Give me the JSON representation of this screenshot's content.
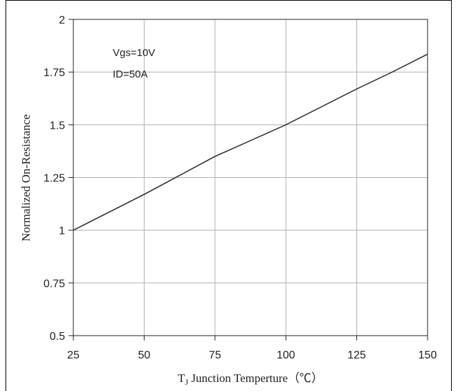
{
  "chart_data": {
    "type": "line",
    "title": "",
    "xlabel": {
      "prefix": "T",
      "subscript": "J",
      "rest": " Junction Temperture（℃）"
    },
    "ylabel": "Normalized On-Resistance",
    "xlim": [
      25,
      150
    ],
    "ylim": [
      0.5,
      2
    ],
    "xticks": [
      "25",
      "50",
      "75",
      "100",
      "125",
      "150"
    ],
    "yticks": [
      "0.5",
      "0.75",
      "1",
      "1.25",
      "1.5",
      "1.75",
      "2"
    ],
    "grid": true,
    "annotations": [
      "Vgs=10V",
      "ID=50A"
    ],
    "series": [
      {
        "x": [
          25,
          37.5,
          50,
          62.5,
          75,
          87.5,
          100,
          112.5,
          125,
          137.5,
          150
        ],
        "y": [
          1.0,
          1.085,
          1.17,
          1.26,
          1.35,
          1.425,
          1.5,
          1.585,
          1.67,
          1.75,
          1.835
        ]
      }
    ],
    "line_color": "#333333",
    "grid_color": "#b0b0b0"
  }
}
